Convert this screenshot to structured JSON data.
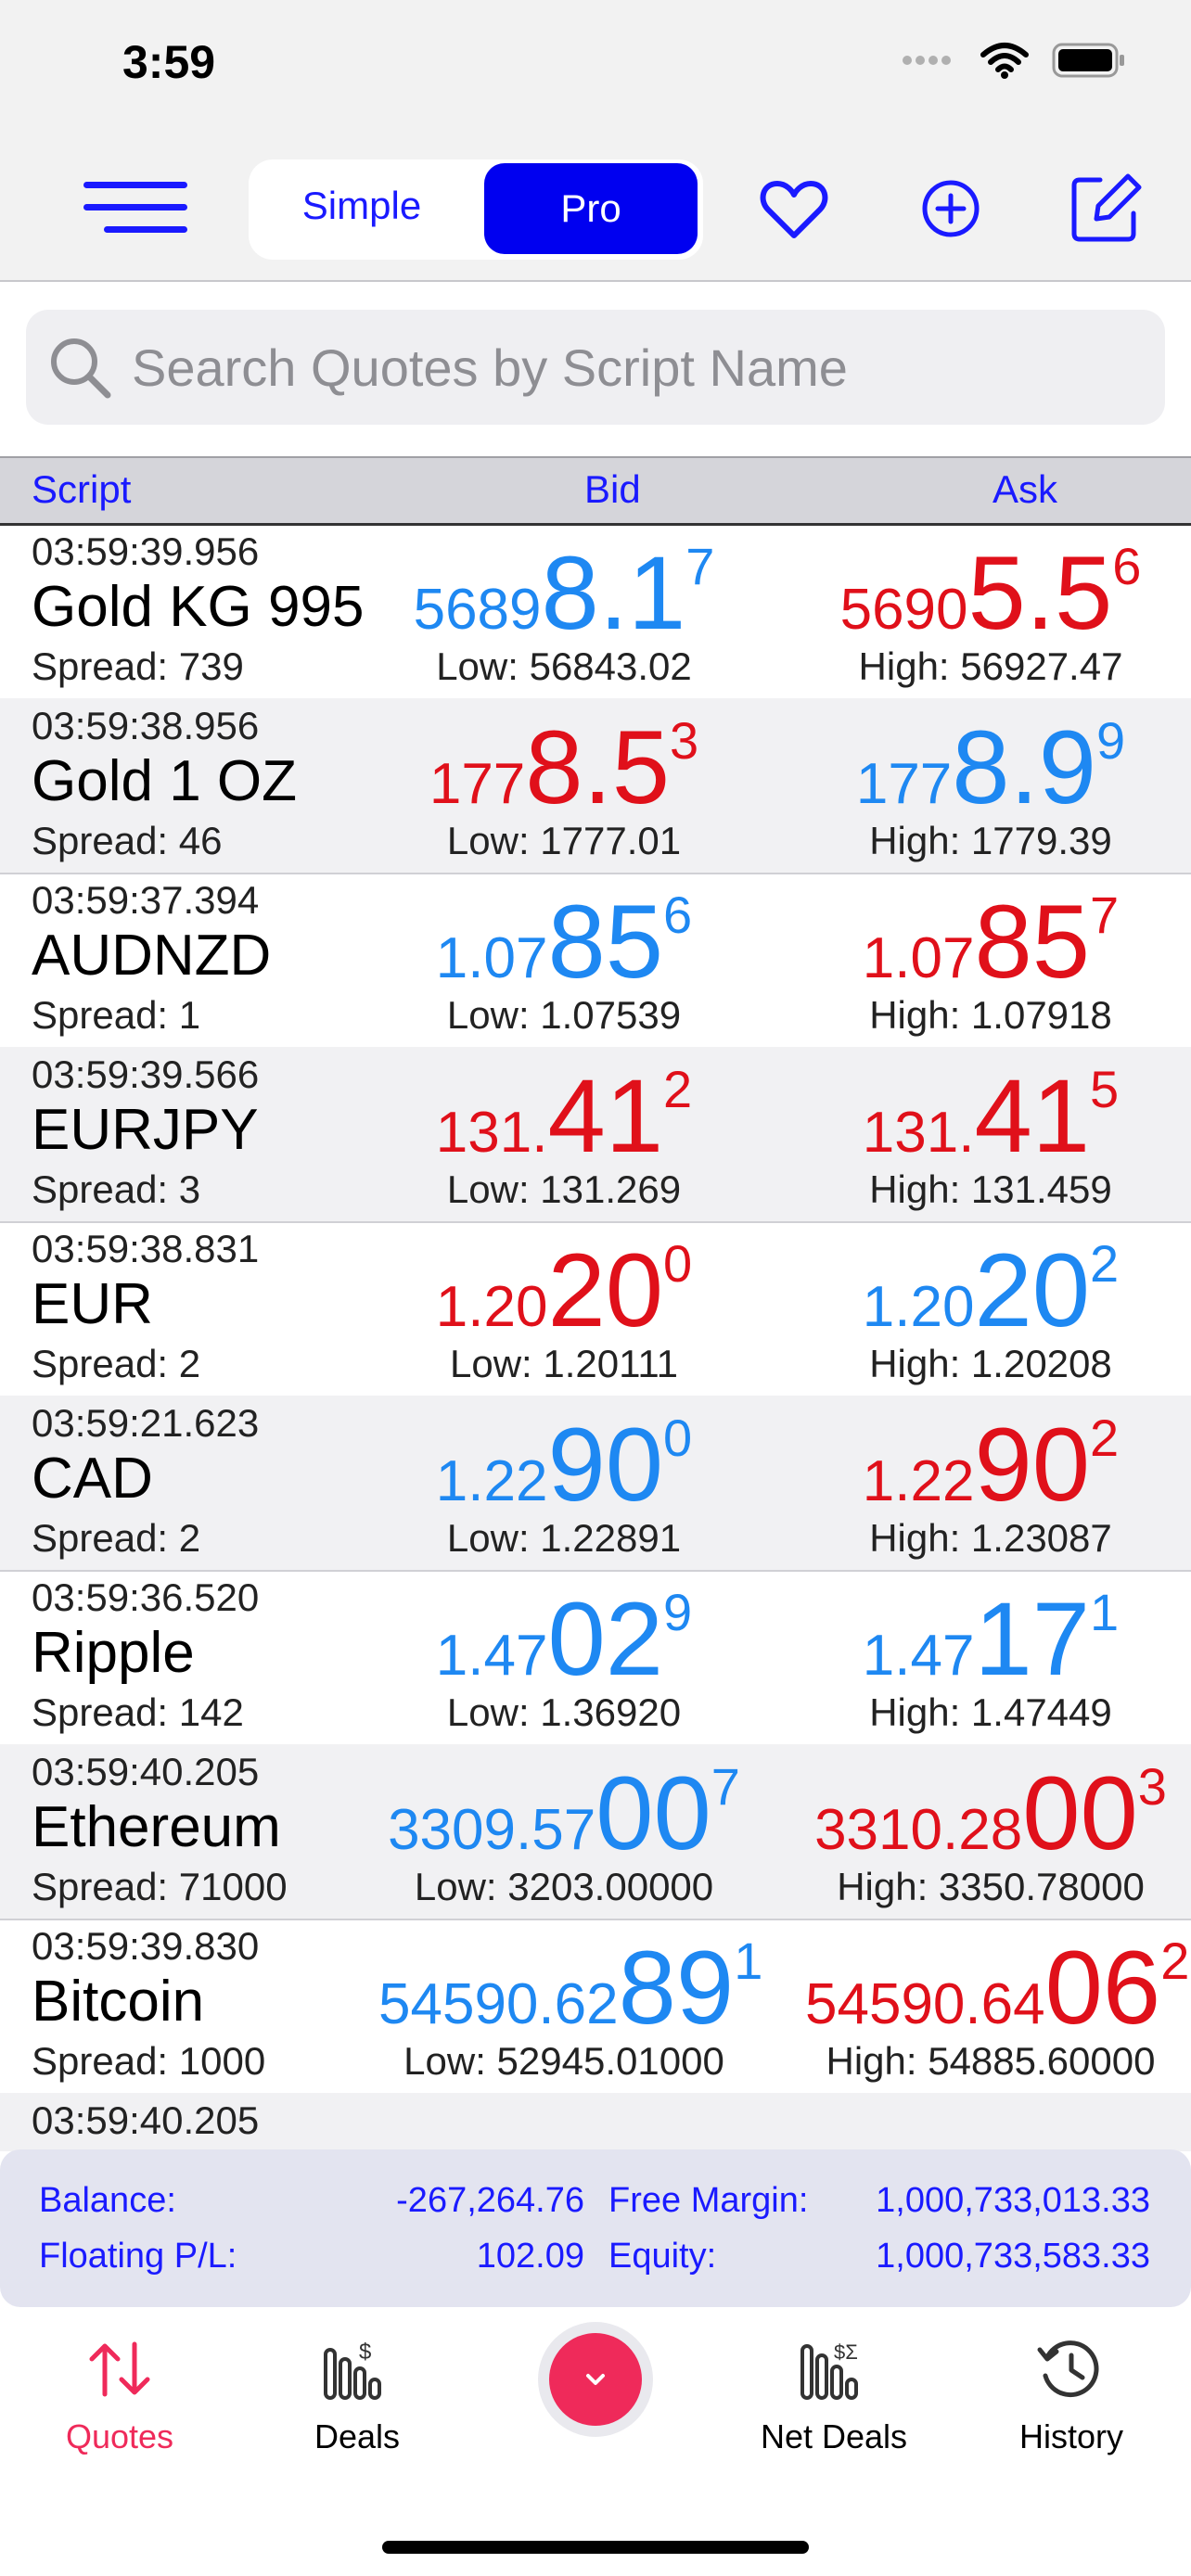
{
  "status": {
    "time": "3:59"
  },
  "nav": {
    "segments": [
      "Simple",
      "Pro"
    ],
    "selected": "Pro",
    "icons": [
      "menu-icon",
      "heart-icon",
      "plus-circle-icon",
      "edit-icon"
    ]
  },
  "search": {
    "placeholder": "Search Quotes by Script Name"
  },
  "columns": {
    "script": "Script",
    "bid": "Bid",
    "ask": "Ask"
  },
  "quotes": [
    {
      "time": "03:59:39.956",
      "name": "Gold KG 995",
      "spread": "Spread: 739",
      "bid": {
        "pre": "5689",
        "big": "8.1",
        "sup": "7",
        "color": "#1e88f2"
      },
      "ask": {
        "pre": "5690",
        "big": "5.5",
        "sup": "6",
        "color": "#e0101a"
      },
      "low": "Low: 56843.02",
      "high": "High: 56927.47"
    },
    {
      "time": "03:59:38.956",
      "name": "Gold 1 OZ",
      "spread": "Spread: 46",
      "bid": {
        "pre": "177",
        "big": "8.5",
        "sup": "3",
        "color": "#e0101a"
      },
      "ask": {
        "pre": "177",
        "big": "8.9",
        "sup": "9",
        "color": "#1e88f2"
      },
      "low": "Low: 1777.01",
      "high": "High: 1779.39"
    },
    {
      "time": "03:59:37.394",
      "name": "AUDNZD",
      "spread": "Spread: 1",
      "bid": {
        "pre": "1.07",
        "big": "85",
        "sup": "6",
        "color": "#1e88f2"
      },
      "ask": {
        "pre": "1.07",
        "big": "85",
        "sup": "7",
        "color": "#e0101a"
      },
      "low": "Low: 1.07539",
      "high": "High: 1.07918"
    },
    {
      "time": "03:59:39.566",
      "name": "EURJPY",
      "spread": "Spread: 3",
      "bid": {
        "pre": "131.",
        "big": "41",
        "sup": "2",
        "color": "#e0101a"
      },
      "ask": {
        "pre": "131.",
        "big": "41",
        "sup": "5",
        "color": "#e0101a"
      },
      "low": "Low: 131.269",
      "high": "High: 131.459"
    },
    {
      "time": "03:59:38.831",
      "name": "EUR",
      "spread": "Spread: 2",
      "bid": {
        "pre": "1.20",
        "big": "20",
        "sup": "0",
        "color": "#e0101a"
      },
      "ask": {
        "pre": "1.20",
        "big": "20",
        "sup": "2",
        "color": "#1e88f2"
      },
      "low": "Low: 1.20111",
      "high": "High: 1.20208"
    },
    {
      "time": "03:59:21.623",
      "name": "CAD",
      "spread": "Spread: 2",
      "bid": {
        "pre": "1.22",
        "big": "90",
        "sup": "0",
        "color": "#1e88f2"
      },
      "ask": {
        "pre": "1.22",
        "big": "90",
        "sup": "2",
        "color": "#e0101a"
      },
      "low": "Low: 1.22891",
      "high": "High: 1.23087"
    },
    {
      "time": "03:59:36.520",
      "name": "Ripple",
      "spread": "Spread: 142",
      "bid": {
        "pre": "1.47",
        "big": "02",
        "sup": "9",
        "color": "#1e88f2"
      },
      "ask": {
        "pre": "1.47",
        "big": "17",
        "sup": "1",
        "color": "#1e88f2"
      },
      "low": "Low: 1.36920",
      "high": "High: 1.47449"
    },
    {
      "time": "03:59:40.205",
      "name": "Ethereum",
      "spread": "Spread: 71000",
      "bid": {
        "pre": "3309.57",
        "big": "00",
        "sup": "7",
        "color": "#1e88f2"
      },
      "ask": {
        "pre": "3310.28",
        "big": "00",
        "sup": "3",
        "color": "#e0101a"
      },
      "low": "Low: 3203.00000",
      "high": "High: 3350.78000"
    },
    {
      "time": "03:59:39.830",
      "name": "Bitcoin",
      "spread": "Spread: 1000",
      "bid": {
        "pre": "54590.62",
        "big": "89",
        "sup": "1",
        "color": "#1e88f2"
      },
      "ask": {
        "pre": "54590.64",
        "big": "06",
        "sup": "2",
        "color": "#e0101a"
      },
      "low": "Low: 52945.01000",
      "high": "High: 54885.60000"
    },
    {
      "time": "03:59:40.205",
      "name": "",
      "spread": "",
      "bid": {
        "pre": "",
        "big": "",
        "sup": "",
        "color": "#1e88f2"
      },
      "ask": {
        "pre": "",
        "big": "",
        "sup": "",
        "color": "#e0101a"
      },
      "low": "",
      "high": ""
    }
  ],
  "summary": {
    "balance_label": "Balance:",
    "balance": "-267,264.76",
    "free_margin_label": "Free Margin:",
    "free_margin": "1,000,733,013.33",
    "floating_label": "Floating P/L:",
    "floating": "102.09",
    "equity_label": "Equity:",
    "equity": "1,000,733,583.33"
  },
  "tabs": [
    {
      "label": "Quotes",
      "icon": "arrows-updown-icon",
      "active": true
    },
    {
      "label": "Deals",
      "icon": "deals-chart-icon",
      "active": false
    },
    {
      "label": "Net Deals",
      "icon": "net-deals-icon",
      "active": false
    },
    {
      "label": "History",
      "icon": "history-icon",
      "active": false
    }
  ]
}
